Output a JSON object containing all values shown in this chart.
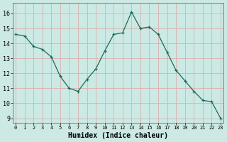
{
  "x": [
    0,
    1,
    2,
    3,
    4,
    5,
    6,
    7,
    8,
    9,
    10,
    11,
    12,
    13,
    14,
    15,
    16,
    17,
    18,
    19,
    20,
    21,
    22,
    23
  ],
  "y": [
    14.6,
    14.5,
    13.8,
    13.6,
    13.1,
    11.8,
    11.0,
    10.8,
    11.6,
    12.3,
    13.5,
    14.6,
    14.7,
    16.1,
    15.0,
    15.1,
    14.6,
    13.4,
    12.2,
    11.5,
    10.8,
    10.2,
    10.1,
    9.0
  ],
  "xlabel": "Humidex (Indice chaleur)",
  "ylim": [
    8.7,
    16.7
  ],
  "yticks": [
    9,
    10,
    11,
    12,
    13,
    14,
    15,
    16
  ],
  "xtick_labels": [
    "0",
    "1",
    "2",
    "3",
    "4",
    "5",
    "6",
    "7",
    "8",
    "9",
    "10",
    "11",
    "12",
    "13",
    "14",
    "15",
    "16",
    "17",
    "18",
    "19",
    "20",
    "21",
    "22",
    "23"
  ],
  "line_color": "#1a6b5a",
  "marker": "+",
  "bg_color": "#cce9e4",
  "grid_color": "#d8b0b0",
  "title": ""
}
